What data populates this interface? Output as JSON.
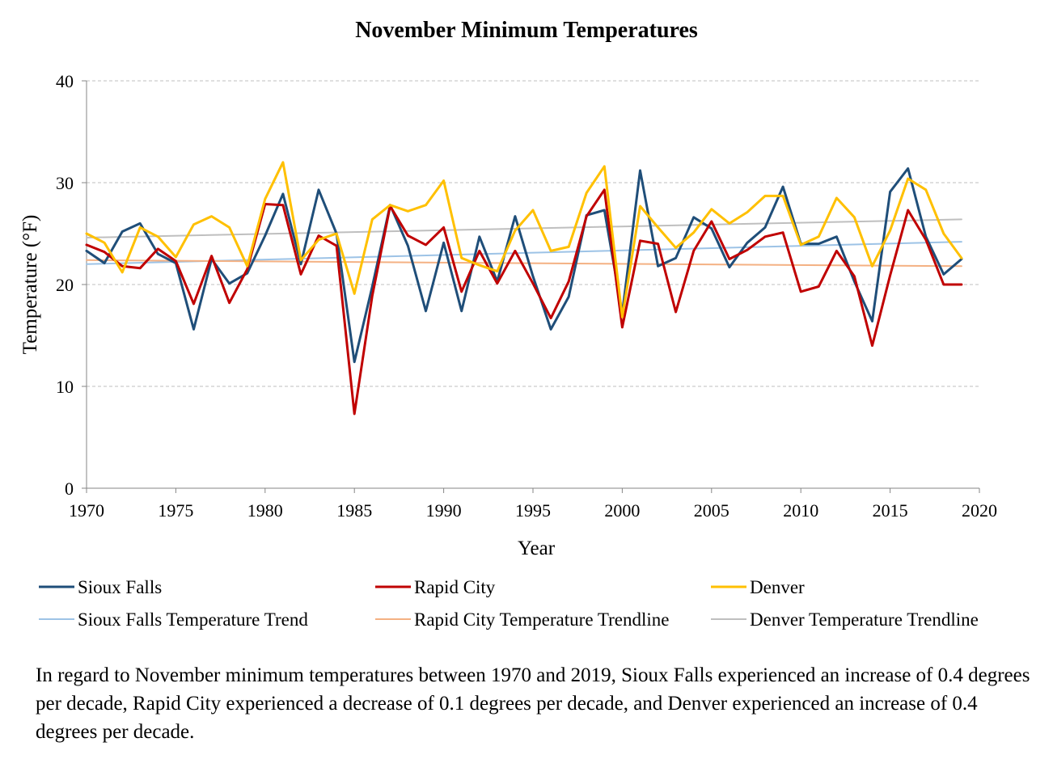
{
  "chart_data": {
    "type": "line",
    "title": "November Minimum Temperatures",
    "xlabel": "Year",
    "ylabel": "Temperature (°F)",
    "xlim": [
      1970,
      2020
    ],
    "ylim": [
      0,
      40
    ],
    "x_ticks": [
      1970,
      1975,
      1980,
      1985,
      1990,
      1995,
      2000,
      2005,
      2010,
      2015,
      2020
    ],
    "y_ticks": [
      0,
      10,
      20,
      30,
      40
    ],
    "grid": "horizontal dashed",
    "legend_position": "bottom",
    "x": [
      1970,
      1971,
      1972,
      1973,
      1974,
      1975,
      1976,
      1977,
      1978,
      1979,
      1980,
      1981,
      1982,
      1983,
      1984,
      1985,
      1986,
      1987,
      1988,
      1989,
      1990,
      1991,
      1992,
      1993,
      1994,
      1995,
      1996,
      1997,
      1998,
      1999,
      2000,
      2001,
      2002,
      2003,
      2004,
      2005,
      2006,
      2007,
      2008,
      2009,
      2010,
      2011,
      2012,
      2013,
      2014,
      2015,
      2016,
      2017,
      2018,
      2019
    ],
    "series": [
      {
        "name": "Sioux Falls",
        "color": "#1f4e79",
        "width": 3,
        "values": [
          23.3,
          22.1,
          25.2,
          26.0,
          23.0,
          22.1,
          15.6,
          22.5,
          20.1,
          21.1,
          24.8,
          28.9,
          22.0,
          29.3,
          25.0,
          12.4,
          19.8,
          27.8,
          23.8,
          17.4,
          24.1,
          17.4,
          24.7,
          20.3,
          26.7,
          20.8,
          15.6,
          18.8,
          26.8,
          27.3,
          17.2,
          31.2,
          21.8,
          22.6,
          26.6,
          25.5,
          21.7,
          24.1,
          25.6,
          29.6,
          24.0,
          24.0,
          24.7,
          20.3,
          16.4,
          29.1,
          31.4,
          24.7,
          21.0,
          22.5
        ]
      },
      {
        "name": "Rapid City",
        "color": "#c00000",
        "width": 3,
        "values": [
          23.9,
          23.2,
          21.8,
          21.6,
          23.5,
          22.3,
          18.1,
          22.8,
          18.2,
          21.5,
          27.9,
          27.8,
          21.0,
          24.8,
          23.8,
          7.3,
          18.9,
          27.7,
          24.8,
          23.9,
          25.6,
          19.3,
          23.3,
          20.1,
          23.3,
          20.1,
          16.7,
          20.3,
          26.7,
          29.3,
          15.8,
          24.3,
          24.0,
          17.3,
          23.3,
          26.2,
          22.5,
          23.4,
          24.7,
          25.1,
          19.3,
          19.8,
          23.3,
          20.8,
          14.0,
          20.9,
          27.3,
          24.4,
          20.0,
          20.0
        ]
      },
      {
        "name": "Denver",
        "color": "#ffc000",
        "width": 3,
        "values": [
          25.0,
          24.1,
          21.2,
          25.6,
          24.7,
          22.7,
          25.9,
          26.7,
          25.6,
          21.8,
          28.4,
          32.0,
          22.4,
          24.4,
          25.0,
          19.1,
          26.4,
          27.8,
          27.2,
          27.8,
          30.2,
          22.6,
          21.9,
          21.3,
          25.3,
          27.3,
          23.3,
          23.7,
          29.0,
          31.6,
          16.8,
          27.7,
          25.6,
          23.6,
          25.1,
          27.4,
          26.0,
          27.1,
          28.7,
          28.7,
          23.9,
          24.7,
          28.5,
          26.6,
          21.8,
          25.3,
          30.4,
          29.3,
          25.0,
          22.6
        ]
      },
      {
        "name": "Sioux Falls Temperature Trend",
        "color": "#9dc3e6",
        "width": 2,
        "trend": true,
        "x": [
          1970,
          2019
        ],
        "values": [
          22.0,
          24.2
        ]
      },
      {
        "name": "Rapid City Temperature Trendline",
        "color": "#f4b183",
        "width": 2,
        "trend": true,
        "x": [
          1970,
          2019
        ],
        "values": [
          22.4,
          21.8
        ]
      },
      {
        "name": "Denver Temperature Trendline",
        "color": "#bfbfbf",
        "width": 2,
        "trend": true,
        "x": [
          1970,
          2019
        ],
        "values": [
          24.6,
          26.4
        ]
      }
    ]
  },
  "caption": "In regard to November minimum temperatures between 1970 and 2019, Sioux Falls experienced an increase of 0.4 degrees per decade, Rapid City experienced a decrease of 0.1 degrees per decade, and Denver experienced an increase of 0.4 degrees per decade."
}
